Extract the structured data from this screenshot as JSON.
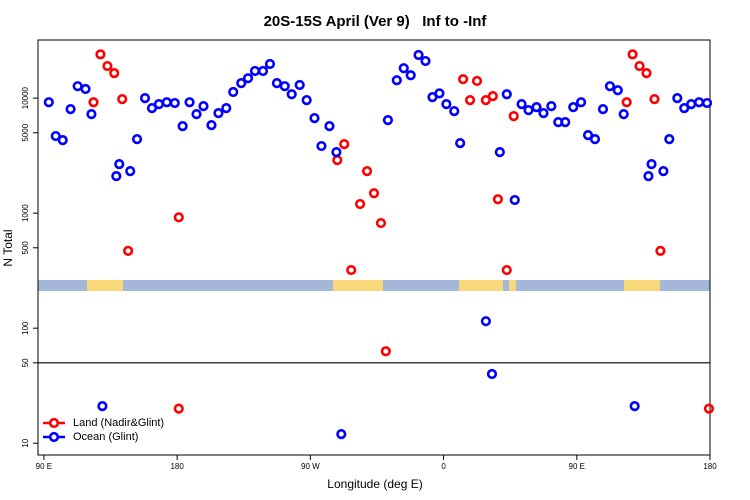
{
  "chart_data": {
    "type": "scatter",
    "title": "20S-15S April (Ver 9)   Inf to -Inf",
    "x_label": "Longitude (deg E)",
    "y_label": "N Total",
    "log_y": true,
    "xlim": [
      86,
      540
    ],
    "ylim": [
      7.9,
      32000
    ],
    "xticks": [
      {
        "value": 90,
        "label": "90 E"
      },
      180,
      {
        "value": 270,
        "label": "90 W"
      },
      {
        "value": 360,
        "label": "0"
      },
      {
        "value": 450,
        "label": "90 E"
      },
      {
        "value": 540,
        "label": "180"
      }
    ],
    "yticks": [
      10,
      50,
      100,
      500,
      1000,
      5000,
      10000
    ],
    "reference_line": 50,
    "legend": "bottom-left",
    "series": [
      {
        "name": "Land (Nadir&Glint)",
        "color": "#ff0000",
        "x": [
          123.5,
          128.2,
          132.9,
          137.5,
          142.9,
          146.9,
          181.1,
          181.1,
          288.2,
          292.9,
          297.6,
          303.6,
          308.3,
          313,
          317.7,
          321,
          373.2,
          377.9,
          382.6,
          388.6,
          393.3,
          396.7,
          402.7,
          407.4,
          483.7,
          487.7,
          492.4,
          497.1,
          502.5,
          506.5,
          539.3
        ],
        "values": [
          9200,
          24000,
          19000,
          16500,
          9800,
          470,
          920,
          20,
          2890,
          3980,
          320,
          1200,
          2320,
          1490,
          820,
          63,
          14600,
          9600,
          14100,
          9600,
          10400,
          1320,
          320,
          6970,
          9200,
          24000,
          19000,
          16500,
          9800,
          470,
          20
        ]
      },
      {
        "name": "Ocean (Glint)",
        "color": "#0000ff",
        "x": [
          93.3,
          98,
          102.7,
          108,
          112.8,
          118.1,
          122.1,
          129.5,
          138.9,
          140.9,
          148.3,
          152.9,
          158.3,
          163,
          167.7,
          173,
          178.4,
          183.7,
          188.4,
          193.1,
          197.8,
          203.2,
          207.9,
          213.2,
          217.9,
          223.3,
          227.9,
          232.6,
          238,
          242.7,
          247.4,
          252.7,
          257.4,
          262.8,
          267.5,
          272.8,
          277.5,
          282.9,
          287.6,
          290.9,
          322.4,
          328.4,
          333.1,
          337.8,
          343.1,
          347.8,
          352.5,
          357.2,
          361.9,
          367.2,
          371.2,
          388.6,
          392.7,
          398,
          402.7,
          408.1,
          412.7,
          417.4,
          422.8,
          427.5,
          432.8,
          437.5,
          442.2,
          447.6,
          452.9,
          457.6,
          462.3,
          467.7,
          472.4,
          477.7,
          481.7,
          489.1,
          498.4,
          500.5,
          508.5,
          512.5,
          517.9,
          522.6,
          527.3,
          532.6,
          538
        ],
        "values": [
          9200,
          4680,
          4310,
          8020,
          12700,
          12000,
          7260,
          21,
          2100,
          2670,
          2320,
          4400,
          10000,
          8190,
          8870,
          9200,
          9060,
          5710,
          9200,
          7260,
          8520,
          5820,
          7410,
          8190,
          11300,
          13500,
          14900,
          17200,
          17200,
          19800,
          13500,
          12700,
          10800,
          13000,
          9600,
          6700,
          3830,
          5710,
          3390,
          12,
          6440,
          14300,
          18200,
          15800,
          23700,
          21000,
          10200,
          11000,
          8870,
          7710,
          4060,
          115,
          40,
          3390,
          10800,
          1300,
          8870,
          7860,
          8350,
          7410,
          8520,
          6180,
          6180,
          8350,
          9200,
          4770,
          4400,
          8020,
          12700,
          11700,
          7260,
          21,
          2100,
          2670,
          2320,
          4400,
          10000,
          8190,
          8870,
          9200,
          9060
        ]
      }
    ]
  }
}
